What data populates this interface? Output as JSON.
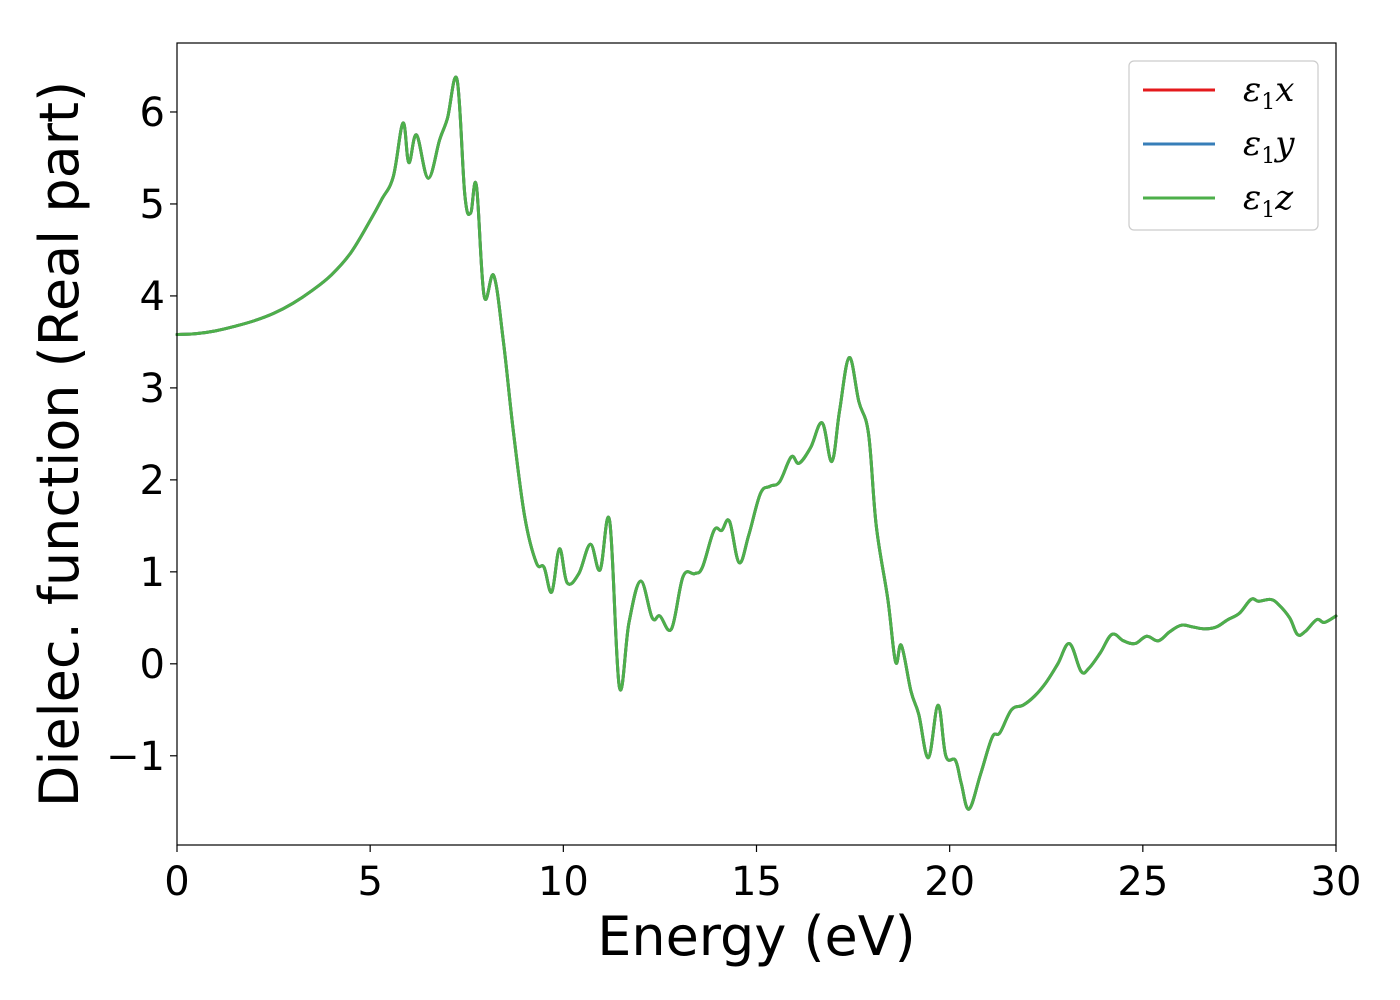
{
  "chart_data": {
    "type": "line",
    "xlabel": "Energy (eV)",
    "ylabel": "Dielec. function (Real part)",
    "xlim": [
      0,
      30
    ],
    "ylim": [
      -1.97,
      6.75
    ],
    "x_ticks": [
      0,
      5,
      10,
      15,
      20,
      25,
      30
    ],
    "x_tick_labels": [
      "0",
      "5",
      "10",
      "15",
      "20",
      "25",
      "30"
    ],
    "y_ticks": [
      -1,
      0,
      1,
      2,
      3,
      4,
      5,
      6
    ],
    "y_tick_labels": [
      "−1",
      "0",
      "1",
      "2",
      "3",
      "4",
      "5",
      "6"
    ],
    "grid": false,
    "legend_position": "top-right",
    "series": [
      {
        "name": "ε₁x",
        "legend": {
          "base": "ε",
          "sub": "1",
          "suffix": "x"
        },
        "color": "#e41a1c",
        "x": [
          0,
          0.5,
          1,
          1.5,
          2,
          2.5,
          3,
          3.5,
          4,
          4.5,
          5,
          5.3,
          5.6,
          5.85,
          6.0,
          6.2,
          6.5,
          6.8,
          7.0,
          7.25,
          7.45,
          7.6,
          7.75,
          7.95,
          8.2,
          8.45,
          8.7,
          9.0,
          9.3,
          9.5,
          9.7,
          9.9,
          10.1,
          10.4,
          10.7,
          10.95,
          11.2,
          11.45,
          11.7,
          12.0,
          12.3,
          12.5,
          12.8,
          13.1,
          13.4,
          13.6,
          13.9,
          14.1,
          14.3,
          14.55,
          14.8,
          15.1,
          15.35,
          15.6,
          15.9,
          16.1,
          16.4,
          16.7,
          16.95,
          17.15,
          17.4,
          17.65,
          17.9,
          18.1,
          18.4,
          18.6,
          18.75,
          19.0,
          19.2,
          19.45,
          19.7,
          19.9,
          20.15,
          20.3,
          20.5,
          20.8,
          21.1,
          21.3,
          21.6,
          21.9,
          22.2,
          22.5,
          22.8,
          23.1,
          23.4,
          23.6,
          23.9,
          24.2,
          24.5,
          24.8,
          25.1,
          25.4,
          25.7,
          26.0,
          26.3,
          26.6,
          26.9,
          27.2,
          27.5,
          27.8,
          28.0,
          28.3,
          28.5,
          28.8,
          29.0,
          29.2,
          29.5,
          29.7,
          30.0
        ],
        "values": [
          3.58,
          3.59,
          3.62,
          3.67,
          3.73,
          3.81,
          3.92,
          4.06,
          4.23,
          4.47,
          4.82,
          5.05,
          5.3,
          5.88,
          5.45,
          5.75,
          5.28,
          5.7,
          5.93,
          6.35,
          5.1,
          4.9,
          5.2,
          4.0,
          4.22,
          3.5,
          2.55,
          1.6,
          1.1,
          1.05,
          0.78,
          1.25,
          0.88,
          0.98,
          1.3,
          1.02,
          1.55,
          -0.25,
          0.45,
          0.9,
          0.5,
          0.52,
          0.38,
          0.95,
          0.98,
          1.05,
          1.45,
          1.45,
          1.55,
          1.1,
          1.4,
          1.85,
          1.93,
          1.98,
          2.25,
          2.18,
          2.35,
          2.62,
          2.2,
          2.75,
          3.33,
          2.85,
          2.5,
          1.5,
          0.7,
          0.02,
          0.2,
          -0.3,
          -0.55,
          -1.02,
          -0.45,
          -1.0,
          -1.05,
          -1.3,
          -1.58,
          -1.2,
          -0.8,
          -0.75,
          -0.5,
          -0.45,
          -0.35,
          -0.2,
          0.0,
          0.22,
          -0.08,
          -0.05,
          0.12,
          0.32,
          0.25,
          0.22,
          0.3,
          0.25,
          0.35,
          0.42,
          0.4,
          0.38,
          0.4,
          0.48,
          0.55,
          0.7,
          0.68,
          0.7,
          0.65,
          0.5,
          0.32,
          0.35,
          0.48,
          0.45,
          0.52
        ]
      },
      {
        "name": "ε₁y",
        "legend": {
          "base": "ε",
          "sub": "1",
          "suffix": "y"
        },
        "color": "#377eb8",
        "x": [
          0,
          0.5,
          1,
          1.5,
          2,
          2.5,
          3,
          3.5,
          4,
          4.5,
          5,
          5.3,
          5.6,
          5.85,
          6.0,
          6.2,
          6.5,
          6.8,
          7.0,
          7.25,
          7.45,
          7.6,
          7.75,
          7.95,
          8.2,
          8.45,
          8.7,
          9.0,
          9.3,
          9.5,
          9.7,
          9.9,
          10.1,
          10.4,
          10.7,
          10.95,
          11.2,
          11.45,
          11.7,
          12.0,
          12.3,
          12.5,
          12.8,
          13.1,
          13.4,
          13.6,
          13.9,
          14.1,
          14.3,
          14.55,
          14.8,
          15.1,
          15.35,
          15.6,
          15.9,
          16.1,
          16.4,
          16.7,
          16.95,
          17.15,
          17.4,
          17.65,
          17.9,
          18.1,
          18.4,
          18.6,
          18.75,
          19.0,
          19.2,
          19.45,
          19.7,
          19.9,
          20.15,
          20.3,
          20.5,
          20.8,
          21.1,
          21.3,
          21.6,
          21.9,
          22.2,
          22.5,
          22.8,
          23.1,
          23.4,
          23.6,
          23.9,
          24.2,
          24.5,
          24.8,
          25.1,
          25.4,
          25.7,
          26.0,
          26.3,
          26.6,
          26.9,
          27.2,
          27.5,
          27.8,
          28.0,
          28.3,
          28.5,
          28.8,
          29.0,
          29.2,
          29.5,
          29.7,
          30.0
        ],
        "values": [
          3.58,
          3.59,
          3.62,
          3.67,
          3.73,
          3.81,
          3.92,
          4.06,
          4.23,
          4.47,
          4.82,
          5.05,
          5.3,
          5.88,
          5.45,
          5.75,
          5.28,
          5.7,
          5.93,
          6.35,
          5.1,
          4.9,
          5.2,
          4.0,
          4.22,
          3.5,
          2.55,
          1.6,
          1.1,
          1.05,
          0.78,
          1.25,
          0.88,
          0.98,
          1.3,
          1.02,
          1.55,
          -0.25,
          0.45,
          0.9,
          0.5,
          0.52,
          0.38,
          0.95,
          0.98,
          1.05,
          1.45,
          1.45,
          1.55,
          1.1,
          1.4,
          1.85,
          1.93,
          1.98,
          2.25,
          2.18,
          2.35,
          2.62,
          2.2,
          2.75,
          3.33,
          2.85,
          2.5,
          1.5,
          0.7,
          0.02,
          0.2,
          -0.3,
          -0.55,
          -1.02,
          -0.45,
          -1.0,
          -1.05,
          -1.3,
          -1.58,
          -1.2,
          -0.8,
          -0.75,
          -0.5,
          -0.45,
          -0.35,
          -0.2,
          0.0,
          0.22,
          -0.08,
          -0.05,
          0.12,
          0.32,
          0.25,
          0.22,
          0.3,
          0.25,
          0.35,
          0.42,
          0.4,
          0.38,
          0.4,
          0.48,
          0.55,
          0.7,
          0.68,
          0.7,
          0.65,
          0.5,
          0.32,
          0.35,
          0.48,
          0.45,
          0.52
        ]
      },
      {
        "name": "ε₁z",
        "legend": {
          "base": "ε",
          "sub": "1",
          "suffix": "z"
        },
        "color": "#4daf4a",
        "x": [
          0,
          0.5,
          1,
          1.5,
          2,
          2.5,
          3,
          3.5,
          4,
          4.5,
          5,
          5.3,
          5.6,
          5.85,
          6.0,
          6.2,
          6.5,
          6.8,
          7.0,
          7.25,
          7.45,
          7.6,
          7.75,
          7.95,
          8.2,
          8.45,
          8.7,
          9.0,
          9.3,
          9.5,
          9.7,
          9.9,
          10.1,
          10.4,
          10.7,
          10.95,
          11.2,
          11.45,
          11.7,
          12.0,
          12.3,
          12.5,
          12.8,
          13.1,
          13.4,
          13.6,
          13.9,
          14.1,
          14.3,
          14.55,
          14.8,
          15.1,
          15.35,
          15.6,
          15.9,
          16.1,
          16.4,
          16.7,
          16.95,
          17.15,
          17.4,
          17.65,
          17.9,
          18.1,
          18.4,
          18.6,
          18.75,
          19.0,
          19.2,
          19.45,
          19.7,
          19.9,
          20.15,
          20.3,
          20.5,
          20.8,
          21.1,
          21.3,
          21.6,
          21.9,
          22.2,
          22.5,
          22.8,
          23.1,
          23.4,
          23.6,
          23.9,
          24.2,
          24.5,
          24.8,
          25.1,
          25.4,
          25.7,
          26.0,
          26.3,
          26.6,
          26.9,
          27.2,
          27.5,
          27.8,
          28.0,
          28.3,
          28.5,
          28.8,
          29.0,
          29.2,
          29.5,
          29.7,
          30.0
        ],
        "values": [
          3.58,
          3.59,
          3.62,
          3.67,
          3.73,
          3.81,
          3.92,
          4.06,
          4.23,
          4.47,
          4.82,
          5.05,
          5.3,
          5.88,
          5.45,
          5.75,
          5.28,
          5.7,
          5.93,
          6.35,
          5.1,
          4.9,
          5.2,
          4.0,
          4.22,
          3.5,
          2.55,
          1.6,
          1.1,
          1.05,
          0.78,
          1.25,
          0.88,
          0.98,
          1.3,
          1.02,
          1.55,
          -0.25,
          0.45,
          0.9,
          0.5,
          0.52,
          0.38,
          0.95,
          0.98,
          1.05,
          1.45,
          1.45,
          1.55,
          1.1,
          1.4,
          1.85,
          1.93,
          1.98,
          2.25,
          2.18,
          2.35,
          2.62,
          2.2,
          2.75,
          3.33,
          2.85,
          2.5,
          1.5,
          0.7,
          0.02,
          0.2,
          -0.3,
          -0.55,
          -1.02,
          -0.45,
          -1.0,
          -1.05,
          -1.3,
          -1.58,
          -1.2,
          -0.8,
          -0.75,
          -0.5,
          -0.45,
          -0.35,
          -0.2,
          0.0,
          0.22,
          -0.08,
          -0.05,
          0.12,
          0.32,
          0.25,
          0.22,
          0.3,
          0.25,
          0.35,
          0.42,
          0.4,
          0.38,
          0.4,
          0.48,
          0.55,
          0.7,
          0.68,
          0.7,
          0.65,
          0.5,
          0.32,
          0.35,
          0.48,
          0.45,
          0.52
        ]
      }
    ]
  }
}
